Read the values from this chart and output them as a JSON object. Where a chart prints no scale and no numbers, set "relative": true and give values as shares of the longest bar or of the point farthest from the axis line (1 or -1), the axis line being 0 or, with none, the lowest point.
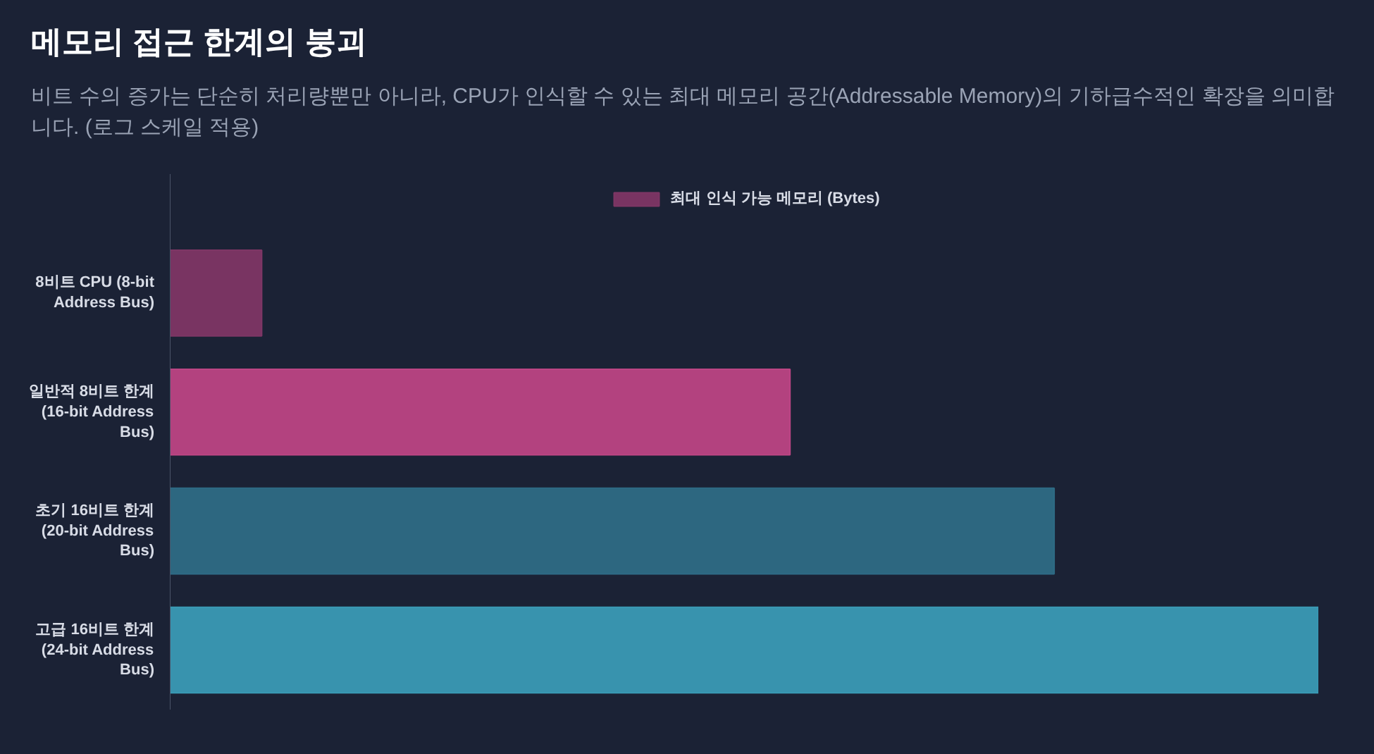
{
  "chart_data": {
    "type": "bar",
    "orientation": "horizontal",
    "relative": true,
    "title": "메모리 접근 한계의 붕괴",
    "subtitle": "비트 수의 증가는 단순히 처리량뿐만 아니라, CPU가 인식할 수 있는 최대 메모리 공간(Addressable Memory)의 기하급수적인 확장을 의미합니다. (로그 스케일 적용)",
    "categories": [
      "8비트 CPU (8-bit Address Bus)",
      "일반적 8비트 한계 (16-bit Address Bus)",
      "초기 16비트 한계 (20-bit Address Bus)",
      "고급 16비트 한계 (24-bit Address Bus)"
    ],
    "series": [
      {
        "name": "최대 인식 가능 메모리 (Bytes)",
        "colors": [
          "#7e3665",
          "#bc4584",
          "#2e6b85",
          "#3a9ab5"
        ],
        "values": [
          0.08,
          0.54,
          0.77,
          1.0
        ]
      }
    ],
    "legend": "top"
  }
}
